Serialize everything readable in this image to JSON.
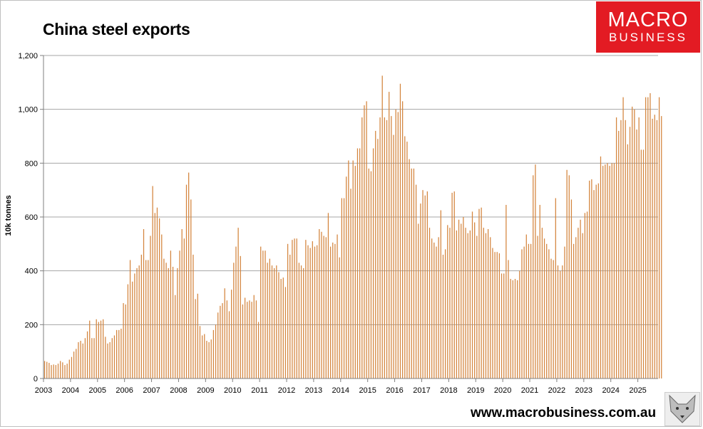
{
  "title": "China steel exports",
  "logo": {
    "line1": "MACRO",
    "line2": "BUSINESS"
  },
  "website": "www.macrobusiness.com.au",
  "colors": {
    "bar": "#d4853e",
    "logo_bg": "#e31b23",
    "grid": "#a6a6a6"
  },
  "chart_data": {
    "type": "bar",
    "title": "China steel exports",
    "ylabel": "10k tonnes",
    "xlabel": "",
    "ylim": [
      0,
      1200
    ],
    "yticks": [
      0,
      200,
      400,
      600,
      800,
      1000,
      1200
    ],
    "ytick_labels": [
      "0",
      "200",
      "400",
      "600",
      "800",
      "1,000",
      "1,200"
    ],
    "xtick_labels": [
      "2003",
      "2004",
      "2005",
      "2006",
      "2007",
      "2008",
      "2009",
      "2010",
      "2011",
      "2012",
      "2013",
      "2014",
      "2015",
      "2016",
      "2017",
      "2018",
      "2019",
      "2020",
      "2021",
      "2022",
      "2023",
      "2024",
      "2025"
    ],
    "grid": true,
    "frequency": "monthly",
    "start": "2003-01",
    "values": [
      65,
      62,
      58,
      50,
      52,
      50,
      55,
      65,
      60,
      50,
      55,
      70,
      80,
      100,
      110,
      135,
      140,
      130,
      150,
      175,
      215,
      150,
      150,
      220,
      210,
      215,
      220,
      155,
      130,
      135,
      150,
      160,
      180,
      180,
      185,
      280,
      275,
      350,
      440,
      360,
      390,
      410,
      420,
      460,
      555,
      440,
      440,
      530,
      715,
      615,
      635,
      595,
      535,
      445,
      430,
      410,
      475,
      415,
      310,
      410,
      475,
      555,
      520,
      720,
      765,
      665,
      460,
      295,
      315,
      195,
      160,
      165,
      140,
      135,
      145,
      180,
      200,
      245,
      270,
      280,
      335,
      290,
      250,
      330,
      430,
      490,
      560,
      455,
      275,
      300,
      285,
      290,
      285,
      310,
      290,
      210,
      490,
      475,
      475,
      430,
      445,
      420,
      410,
      420,
      395,
      370,
      375,
      340,
      500,
      460,
      515,
      520,
      520,
      430,
      420,
      410,
      515,
      495,
      485,
      510,
      490,
      495,
      555,
      545,
      530,
      525,
      615,
      490,
      505,
      500,
      535,
      450,
      670,
      670,
      750,
      810,
      705,
      810,
      790,
      855,
      855,
      970,
      1015,
      1030,
      780,
      770,
      855,
      920,
      890,
      970,
      1125,
      970,
      960,
      1065,
      975,
      905,
      1000,
      990,
      1095,
      1030,
      900,
      880,
      815,
      780,
      780,
      720,
      575,
      650,
      700,
      680,
      695,
      560,
      520,
      505,
      490,
      525,
      625,
      460,
      480,
      570,
      560,
      690,
      695,
      550,
      590,
      575,
      600,
      560,
      540,
      550,
      620,
      580,
      530,
      630,
      635,
      560,
      540,
      555,
      525,
      485,
      470,
      470,
      465,
      390,
      390,
      645,
      440,
      370,
      365,
      370,
      365,
      400,
      480,
      490,
      535,
      500,
      500,
      755,
      795,
      530,
      645,
      560,
      520,
      500,
      480,
      445,
      440,
      670,
      420,
      400,
      420,
      490,
      775,
      755,
      665,
      500,
      525,
      560,
      590,
      540,
      615,
      620,
      735,
      740,
      700,
      720,
      725,
      825,
      790,
      795,
      800,
      790,
      800,
      800,
      970,
      920,
      960,
      1045,
      960,
      870,
      935,
      1010,
      1000,
      925,
      970,
      850,
      850,
      1045,
      1045,
      1060,
      965,
      980,
      960,
      1045,
      975
    ]
  }
}
